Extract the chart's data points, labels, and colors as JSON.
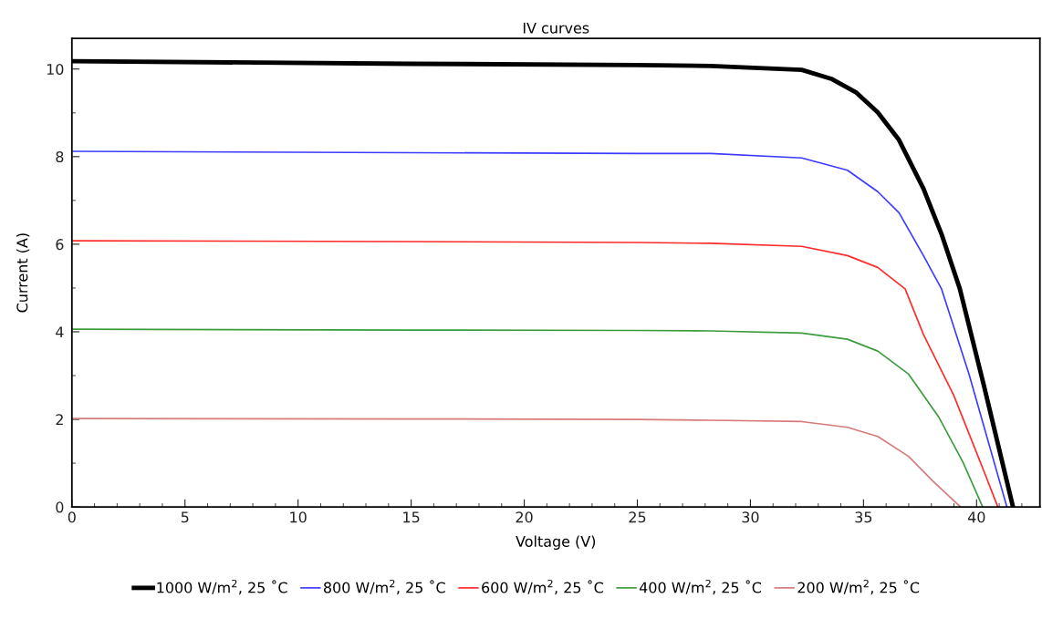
{
  "chart_data": {
    "type": "line",
    "title": "IV curves",
    "xlabel": "Voltage (V)",
    "ylabel": "Current (A)",
    "xlim": [
      0,
      42.8
    ],
    "ylim": [
      0,
      10.7
    ],
    "xticks": [
      0,
      {
        "value": 1,
        "label": null
      },
      {
        "value": 2,
        "label": null
      },
      {
        "value": 3,
        "label": null
      },
      {
        "value": 4,
        "label": null
      },
      5,
      {
        "value": 6,
        "label": null
      },
      {
        "value": 7,
        "label": null
      },
      {
        "value": 8,
        "label": null
      },
      {
        "value": 9,
        "label": null
      },
      10,
      {
        "value": 11,
        "label": null
      },
      {
        "value": 12,
        "label": null
      },
      {
        "value": 13,
        "label": null
      },
      {
        "value": 14,
        "label": null
      },
      15,
      {
        "value": 16,
        "label": null
      },
      {
        "value": 17,
        "label": null
      },
      {
        "value": 18,
        "label": null
      },
      {
        "value": 19,
        "label": null
      },
      20,
      {
        "value": 21,
        "label": null
      },
      {
        "value": 22,
        "label": null
      },
      {
        "value": 23,
        "label": null
      },
      {
        "value": 24,
        "label": null
      },
      25,
      {
        "value": 26,
        "label": null
      },
      {
        "value": 27,
        "label": null
      },
      {
        "value": 28,
        "label": null
      },
      {
        "value": 29,
        "label": null
      },
      30,
      {
        "value": 31,
        "label": null
      },
      {
        "value": 32,
        "label": null
      },
      {
        "value": 33,
        "label": null
      },
      {
        "value": 34,
        "label": null
      },
      35,
      {
        "value": 36,
        "label": null
      },
      {
        "value": 37,
        "label": null
      },
      {
        "value": 38,
        "label": null
      },
      {
        "value": 39,
        "label": null
      },
      40,
      {
        "value": 41,
        "label": null
      },
      {
        "value": 42,
        "label": null
      }
    ],
    "yticks": [
      0,
      {
        "value": 1,
        "label": null
      },
      2,
      {
        "value": 3,
        "label": null
      },
      4,
      {
        "value": 5,
        "label": null
      },
      6,
      {
        "value": 7,
        "label": null
      },
      8,
      {
        "value": 9,
        "label": null
      },
      10
    ],
    "grid": false,
    "legend": "bottom",
    "marker": "none",
    "line_style": "solid",
    "series": [
      {
        "name": "1000 W/m$^{2}$, 25 ˚C",
        "color": "#000000",
        "x": [
          0,
          15,
          25,
          28.24,
          32.27,
          33.61,
          34.69,
          35.63,
          36.57,
          37.65,
          38.45,
          39.26,
          40.33,
          41.61
        ],
        "values": [
          10.18,
          10.12,
          10.09,
          10.07,
          9.98,
          9.77,
          9.46,
          9.01,
          8.38,
          7.27,
          6.23,
          4.98,
          2.76,
          0
        ]
      },
      {
        "name": "800 W/m$^{2}$, 25 ˚C",
        "color": "#3c3cff",
        "x": [
          0,
          15,
          25,
          28.24,
          32.27,
          34.29,
          35.63,
          36.57,
          37.65,
          38.45,
          39.66,
          41.34
        ],
        "values": [
          8.12,
          8.09,
          8.07,
          8.07,
          7.97,
          7.69,
          7.2,
          6.72,
          5.74,
          4.98,
          3.04,
          0
        ]
      },
      {
        "name": "600 W/m$^{2}$, 25 ˚C",
        "color": "#ff2a2a",
        "x": [
          0,
          15,
          25,
          28.24,
          32.27,
          34.29,
          35.63,
          36.84,
          37.65,
          38.99,
          40.33,
          40.94
        ],
        "values": [
          6.08,
          6.06,
          6.04,
          6.02,
          5.95,
          5.74,
          5.47,
          4.98,
          3.94,
          2.55,
          0.81,
          0
        ]
      },
      {
        "name": "400 W/m$^{2}$, 25 ˚C",
        "color": "#3c9c3c",
        "x": [
          0,
          15,
          25,
          28.24,
          32.27,
          34.29,
          35.63,
          36.98,
          38.32,
          39.4,
          40.27
        ],
        "values": [
          4.06,
          4.04,
          4.03,
          4.02,
          3.97,
          3.83,
          3.56,
          3.04,
          2.06,
          1.02,
          0
        ]
      },
      {
        "name": "200 W/m$^{2}$, 25 ˚C",
        "color": "#d87a7a",
        "x": [
          0,
          15,
          25,
          28.24,
          32.27,
          34.29,
          35.63,
          36.98,
          38.05,
          39.29
        ],
        "values": [
          2.02,
          2.01,
          2.0,
          1.98,
          1.95,
          1.82,
          1.61,
          1.16,
          0.6,
          0
        ]
      }
    ]
  }
}
